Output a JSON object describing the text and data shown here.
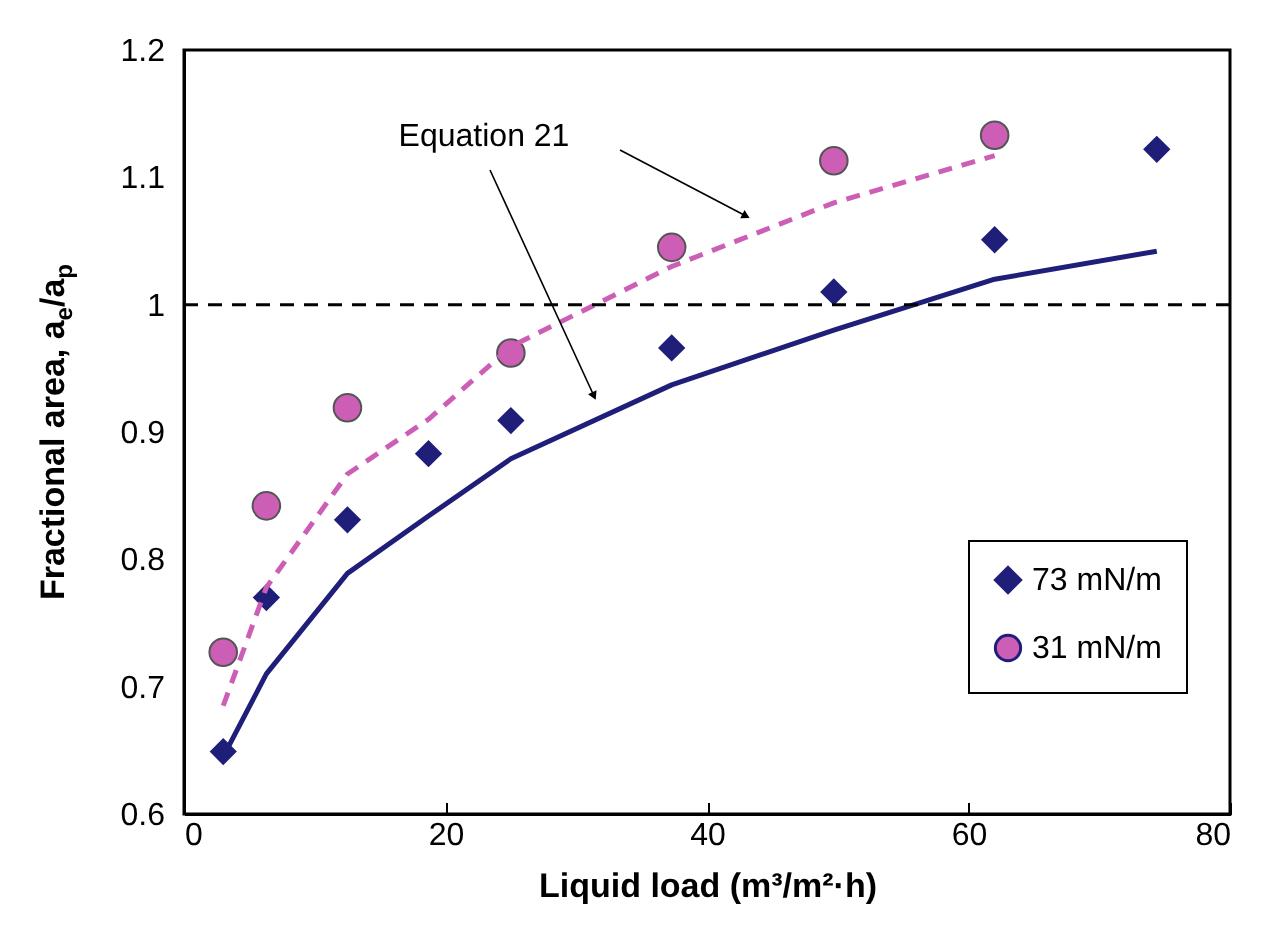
{
  "chart_data": {
    "type": "scatter",
    "xlabel": "Liquid load (m³/m²·h)",
    "ylabel": "Fractional area, a$_{e}$/a$_{p}$",
    "annotations": [
      "Equation 21"
    ],
    "xlim": [
      0,
      80
    ],
    "xticks": [
      0,
      20,
      40,
      60,
      80
    ],
    "ylim": [
      0.6,
      1.2
    ],
    "yticks": [
      0.6,
      0.7,
      0.8,
      0.9,
      1,
      1.1,
      1.2
    ],
    "grid": false,
    "legend": "bottom right",
    "ref_lines": [
      {
        "axis": "y",
        "value": 1,
        "color": "#000000",
        "line_style": "dashed"
      }
    ],
    "series": [
      {
        "name": "73 mN/m",
        "marker": "diamond",
        "color": "#1f1f7a",
        "x": [
          3,
          6.3,
          12.5,
          18.7,
          25,
          37.3,
          49.7,
          62,
          74.4
        ],
        "values": [
          0.649,
          0.77,
          0.831,
          0.883,
          0.909,
          0.966,
          1.01,
          1.051,
          1.122
        ]
      },
      {
        "name": "31 mN/m",
        "marker": "circle",
        "color": "#cc5fb5",
        "x": [
          3,
          6.3,
          12.5,
          25,
          37.3,
          49.7,
          62
        ],
        "values": [
          0.727,
          0.842,
          0.919,
          0.962,
          1.045,
          1.113,
          1.133
        ]
      },
      {
        "type": "line",
        "line_style": "solid",
        "color": "#1f1f7a",
        "x": [
          3,
          6.3,
          12.5,
          18.7,
          25,
          37.3,
          49.7,
          62,
          74.4
        ],
        "values": [
          0.645,
          0.71,
          0.789,
          0.834,
          0.879,
          0.937,
          0.98,
          1.02,
          1.042
        ]
      },
      {
        "type": "line",
        "line_style": "dashed",
        "color": "#cc5fb5",
        "x": [
          3,
          6.3,
          12.5,
          18.7,
          25,
          37.3,
          49.7,
          62
        ],
        "values": [
          0.685,
          0.778,
          0.867,
          0.91,
          0.967,
          1.03,
          1.08,
          1.117
        ]
      }
    ]
  }
}
